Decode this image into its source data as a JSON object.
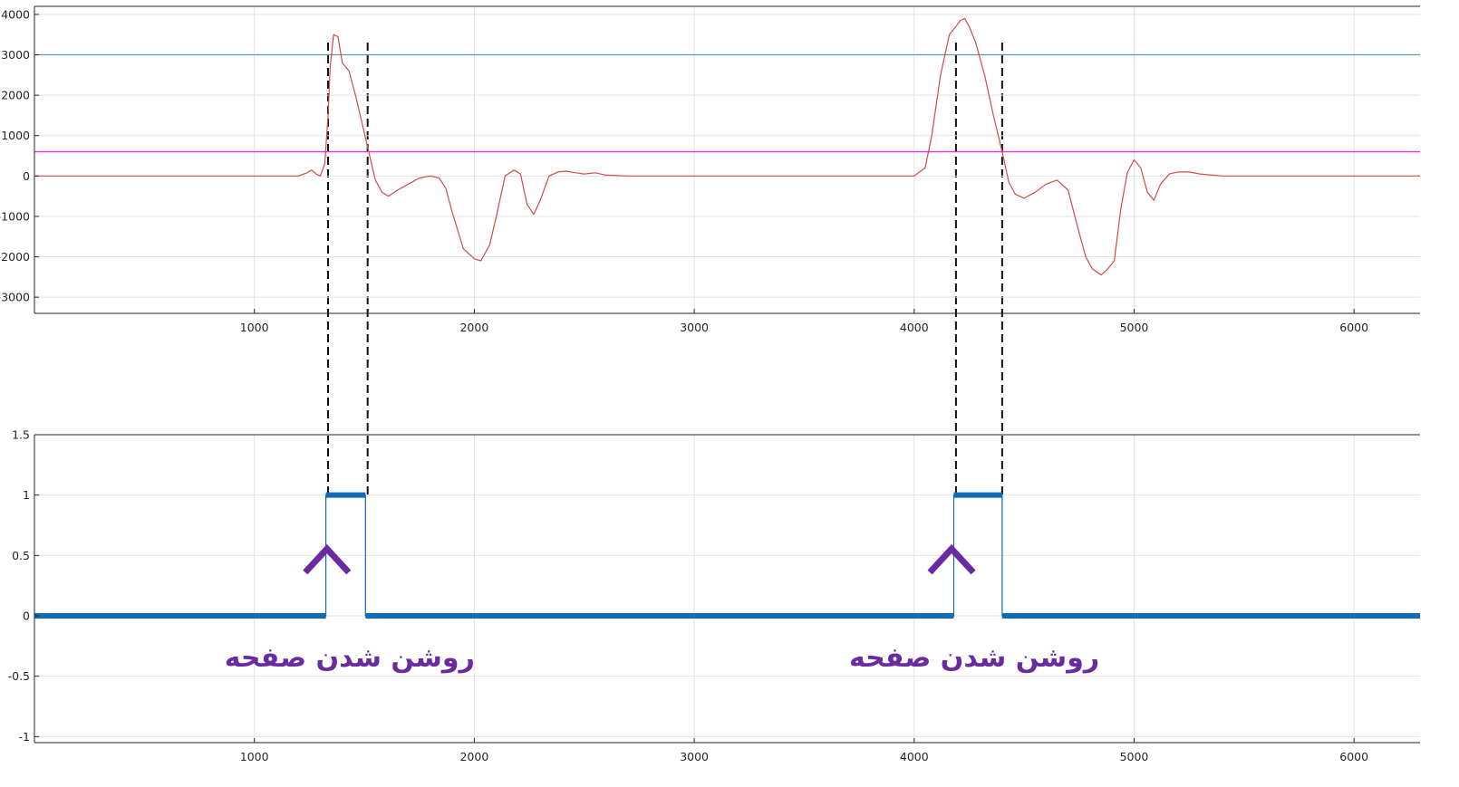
{
  "chart_data": [
    {
      "type": "line",
      "xlim": [
        0,
        6300
      ],
      "ylim": [
        -3400,
        4200
      ],
      "xticks": [
        1000,
        2000,
        3000,
        4000,
        5000,
        6000
      ],
      "yticks": [
        -3000,
        -2000,
        -1000,
        0,
        1000,
        2000,
        3000,
        4000
      ],
      "xtick_labels": [
        "1000",
        "2000",
        "3000",
        "4000",
        "5000",
        "6000"
      ],
      "ytick_labels": [
        "-3000",
        "-2000",
        "-1000",
        "0",
        "1000",
        "2000",
        "3000",
        "4000"
      ],
      "grid": true,
      "series": [
        {
          "color": "#d14b4b",
          "x": [
            0,
            1000,
            1200,
            1240,
            1260,
            1280,
            1300,
            1320,
            1335,
            1345,
            1360,
            1380,
            1400,
            1430,
            1460,
            1490,
            1520,
            1550,
            1580,
            1610,
            1650,
            1700,
            1750,
            1800,
            1840,
            1870,
            1900,
            1950,
            2000,
            2030,
            2070,
            2100,
            2140,
            2180,
            2210,
            2240,
            2270,
            2300,
            2340,
            2380,
            2420,
            2460,
            2500,
            2550,
            2600,
            2700,
            2900,
            3300,
            3800,
            4000,
            4050,
            4080,
            4120,
            4160,
            4190,
            4210,
            4230,
            4250,
            4280,
            4320,
            4360,
            4400,
            4430,
            4460,
            4500,
            4550,
            4600,
            4650,
            4700,
            4740,
            4780,
            4810,
            4850,
            4880,
            4910,
            4940,
            4970,
            5000,
            5030,
            5060,
            5090,
            5120,
            5160,
            5200,
            5250,
            5300,
            5400,
            5600,
            6300
          ],
          "y": [
            0,
            0,
            0,
            80,
            150,
            50,
            0,
            300,
            1500,
            2700,
            3500,
            3450,
            2800,
            2600,
            2000,
            1300,
            600,
            -100,
            -400,
            -500,
            -350,
            -200,
            -50,
            0,
            -50,
            -300,
            -900,
            -1800,
            -2050,
            -2100,
            -1700,
            -1000,
            0,
            150,
            50,
            -700,
            -950,
            -600,
            0,
            100,
            120,
            80,
            50,
            80,
            20,
            0,
            0,
            0,
            0,
            0,
            200,
            1000,
            2500,
            3500,
            3700,
            3850,
            3900,
            3700,
            3300,
            2500,
            1500,
            600,
            -150,
            -450,
            -550,
            -400,
            -200,
            -100,
            -350,
            -1200,
            -2000,
            -2300,
            -2450,
            -2300,
            -2100,
            -800,
            100,
            400,
            200,
            -400,
            -600,
            -200,
            50,
            100,
            100,
            50,
            0,
            0,
            0
          ]
        }
      ],
      "thresholds": [
        {
          "y": 3000,
          "color": "#5b9aa9"
        },
        {
          "y": 600,
          "color": "#e033e0"
        }
      ],
      "markers_x": [
        1335,
        1515,
        4190,
        4400
      ]
    },
    {
      "type": "line",
      "xlim": [
        0,
        6300
      ],
      "ylim": [
        -1.05,
        1.5
      ],
      "xticks": [
        1000,
        2000,
        3000,
        4000,
        5000,
        6000
      ],
      "yticks": [
        -1,
        -0.5,
        0,
        0.5,
        1,
        1.5
      ],
      "xtick_labels": [
        "1000",
        "2000",
        "3000",
        "4000",
        "5000",
        "6000"
      ],
      "ytick_labels": [
        "-1",
        "-0.5",
        "0",
        "0.5",
        "1",
        "1.5"
      ],
      "grid": true,
      "series": [
        {
          "color": "#0f6cb5",
          "x": [
            0,
            1325,
            1325,
            1505,
            1505,
            4180,
            4180,
            4400,
            4400,
            6300
          ],
          "y": [
            0,
            0,
            1,
            1,
            0,
            0,
            1,
            1,
            0,
            0
          ]
        }
      ],
      "annotations": [
        {
          "text": "روشن شدن صفحه",
          "x": 1330,
          "arrow_y": 0.6
        },
        {
          "text": "روشن شدن صفحه",
          "x": 4170,
          "arrow_y": 0.6
        }
      ]
    }
  ]
}
